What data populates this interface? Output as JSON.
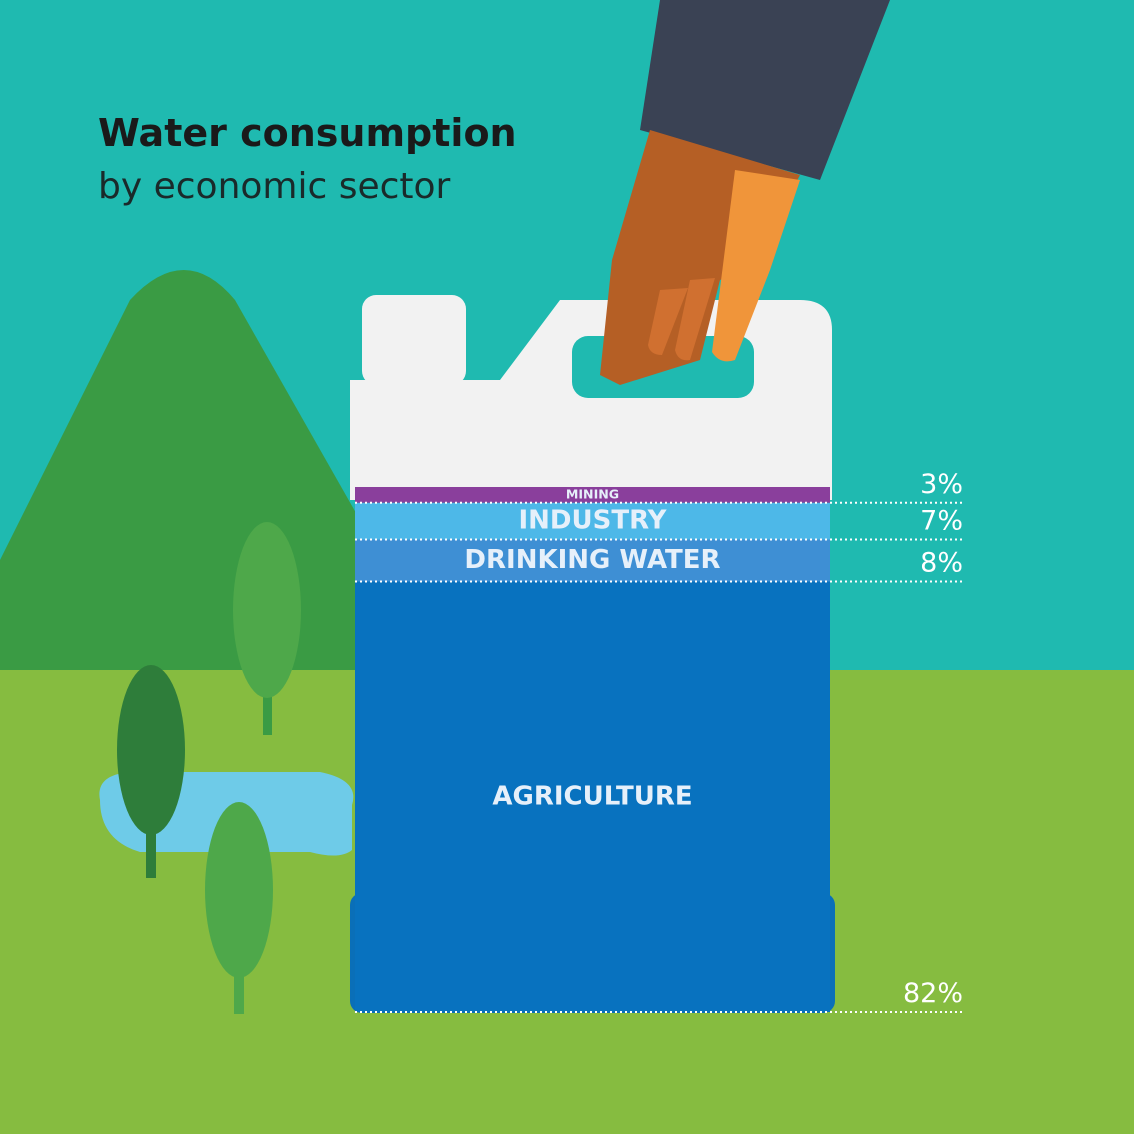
{
  "chart_data": {
    "type": "stacked-bar",
    "title": "Water consumption",
    "subtitle": "by economic sector",
    "series": [
      {
        "name": "MINING",
        "color": "#8a3f9c",
        "values": [
          3
        ],
        "value_labels": [
          "3%"
        ]
      },
      {
        "name": "INDUSTRY",
        "color": "#4db8e8",
        "values": [
          7
        ],
        "value_labels": [
          "7%"
        ]
      },
      {
        "name": "DRINKING WATER",
        "color": "#3e8fd4",
        "values": [
          8
        ],
        "value_labels": [
          "8%"
        ]
      },
      {
        "name": "AGRICULTURE",
        "color": "#0872bf",
        "values": [
          82
        ],
        "value_labels": [
          "82%"
        ]
      }
    ]
  }
}
